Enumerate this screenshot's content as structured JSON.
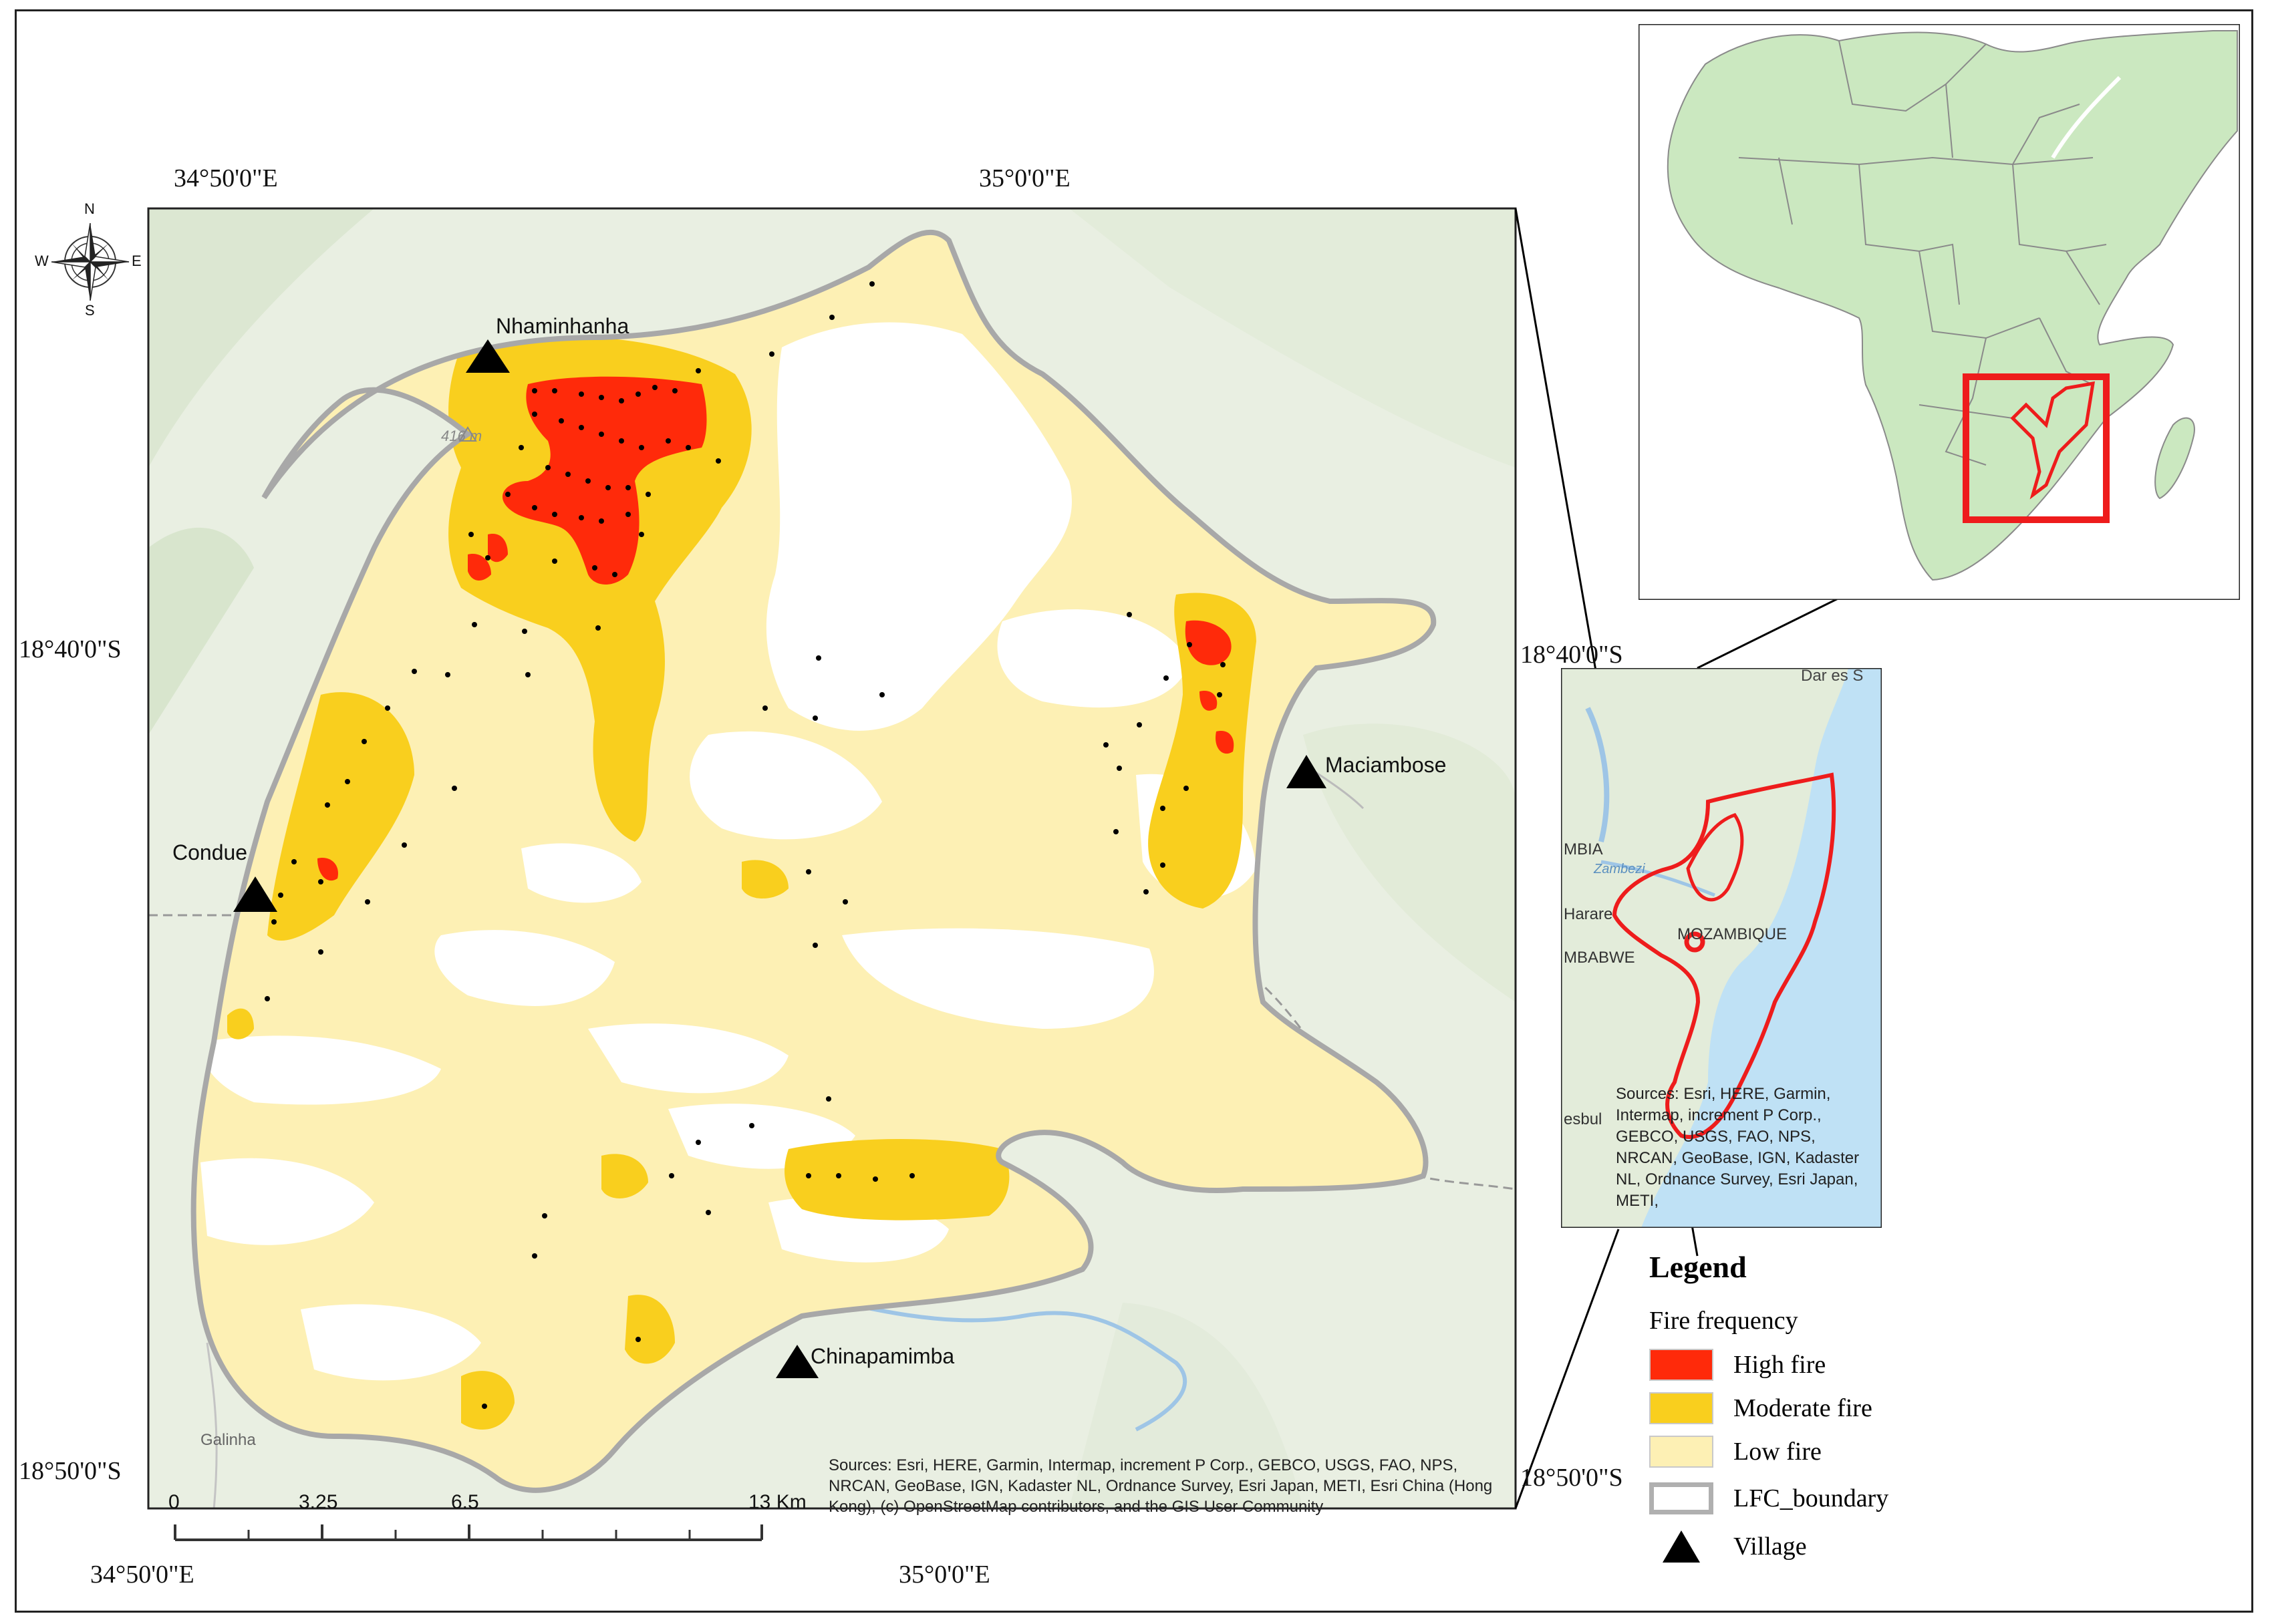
{
  "coordinates": {
    "top_left": "34°50'0\"E",
    "top_right": "35°0'0\"E",
    "bottom_left": "34°50'0\"E",
    "bottom_right": "35°0'0\"E",
    "left_top": "18°40'0\"S",
    "left_bottom": "18°50'0\"S",
    "right_top": "18°40'0\"S",
    "right_bottom": "18°50'0\"S"
  },
  "compass": {
    "n": "N",
    "s": "S",
    "e": "E",
    "w": "W"
  },
  "villages": [
    {
      "name": "Nhaminhanha"
    },
    {
      "name": "Condue"
    },
    {
      "name": "Maciambose"
    },
    {
      "name": "Chinapamimba"
    }
  ],
  "place_labels": {
    "galinha": "Galinha",
    "elevation": "416 m"
  },
  "scale_bar": {
    "ticks": [
      "0",
      "3.25",
      "6.5",
      "13 Km"
    ]
  },
  "attribution_main": "Sources: Esri, HERE, Garmin, Intermap, increment P Corp., GEBCO, USGS, FAO, NPS, NRCAN, GeoBase, IGN, Kadaster NL, Ordnance Survey, Esri Japan, METI, Esri China (Hong Kong), (c) OpenStreetMap contributors, and the GIS User Community",
  "inset_regional": {
    "labels": {
      "dar": "Dar es S",
      "mbia": "MBIA",
      "harare": "Harare",
      "zimbabwe": "MBABWE",
      "mozambique": "MOZAMBIQUE",
      "zambezi": "Zambezi",
      "bulawayo": "esbul"
    },
    "attribution": "Sources: Esri, HERE, Garmin, Intermap, increment P Corp., GEBCO, USGS, FAO, NPS, NRCAN, GeoBase, IGN, Kadaster NL, Ordnance Survey, Esri Japan, METI,"
  },
  "legend": {
    "title": "Legend",
    "subtitle": "Fire frequency",
    "items": [
      {
        "label": "High fire",
        "color": "#ff2a0a"
      },
      {
        "label": "Moderate fire",
        "color": "#f9cf1e"
      },
      {
        "label": "Low fire",
        "color": "#fdf0b4"
      },
      {
        "label": "LFC_boundary",
        "color": "#b0b0b0"
      },
      {
        "label": "Village",
        "color": "#000000"
      }
    ]
  },
  "colors": {
    "basemap": "#e9efe2",
    "basemap_dark": "#dce7d2",
    "africa_land": "#cbe8c0",
    "ocean_inset": "#bfe1f5",
    "highlight": "#ee1c1c"
  }
}
